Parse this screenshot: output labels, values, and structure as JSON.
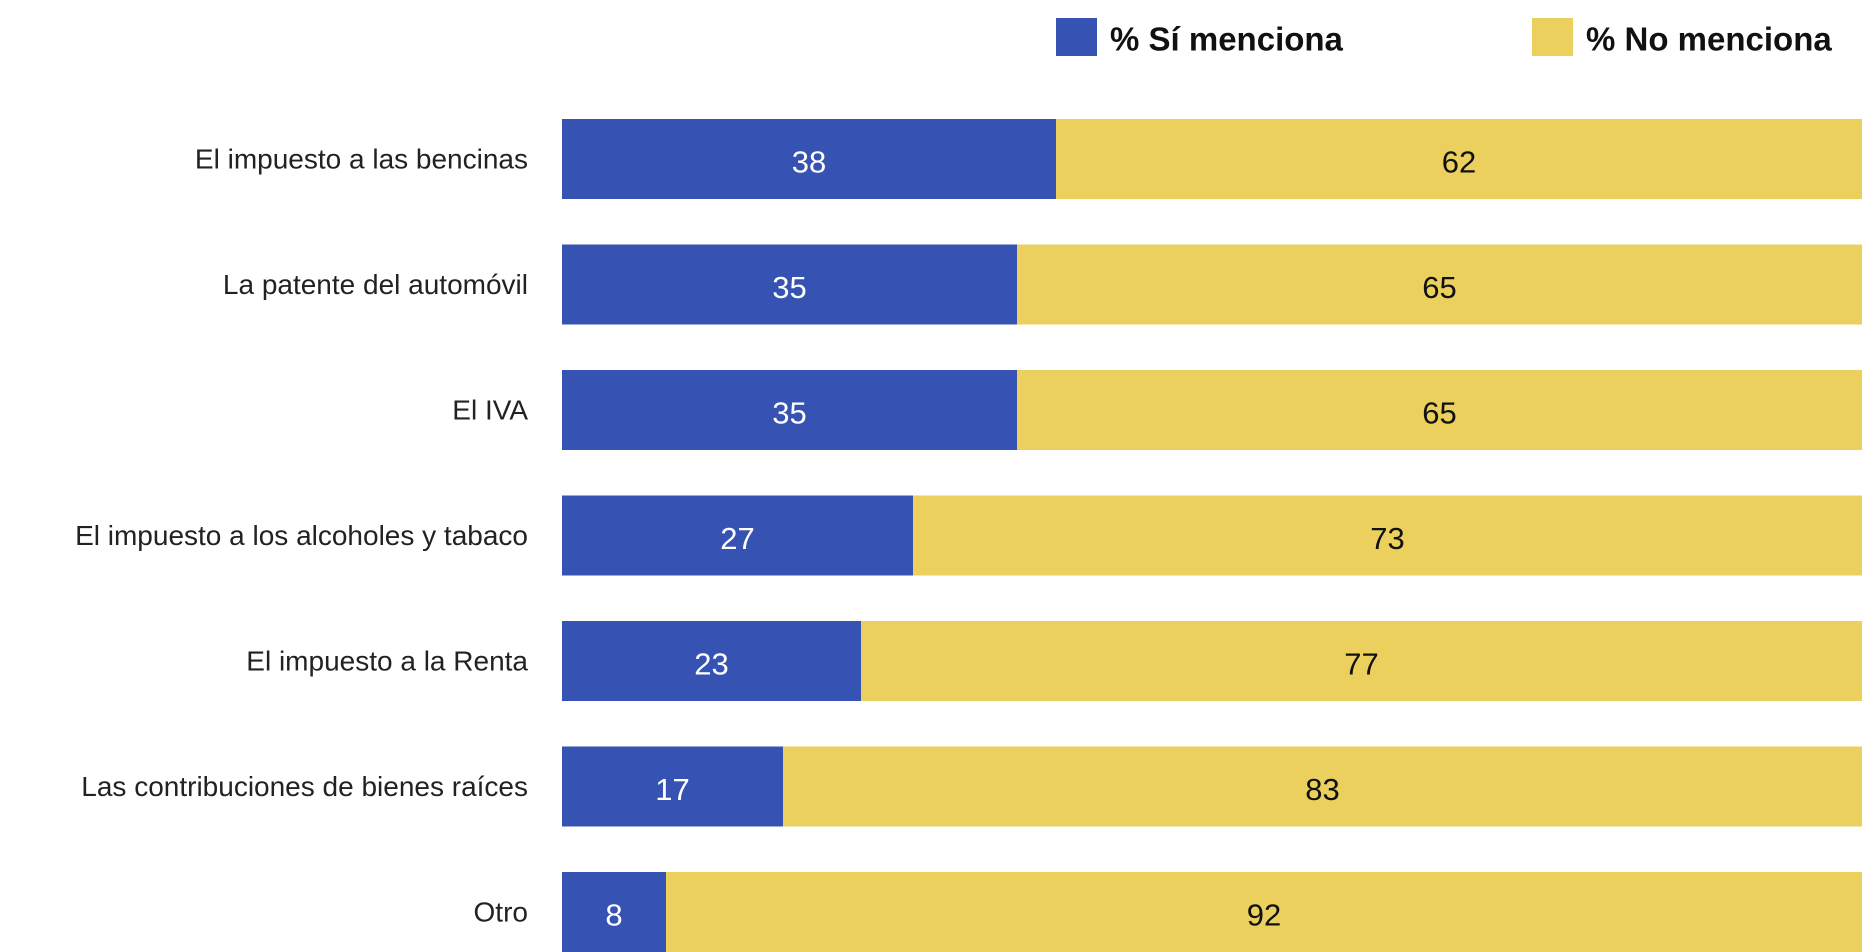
{
  "chart_data": {
    "type": "stacked-bar-horizontal",
    "categories": [
      "El impuesto a las bencinas",
      "La patente del automóvil",
      "El IVA",
      "El impuesto a los alcoholes y tabaco",
      "El impuesto a la Renta",
      "Las contribuciones de bienes raíces",
      "Otro"
    ],
    "series": [
      {
        "name": "% Sí menciona",
        "color": "#3653b3",
        "label_color": "#ffffff",
        "values": [
          38,
          35,
          35,
          27,
          23,
          17,
          8
        ]
      },
      {
        "name": "% No menciona",
        "color": "#ebd05e",
        "label_color": "#111111",
        "values": [
          62,
          65,
          65,
          73,
          77,
          83,
          92
        ]
      }
    ],
    "xlim": [
      0,
      100
    ]
  }
}
